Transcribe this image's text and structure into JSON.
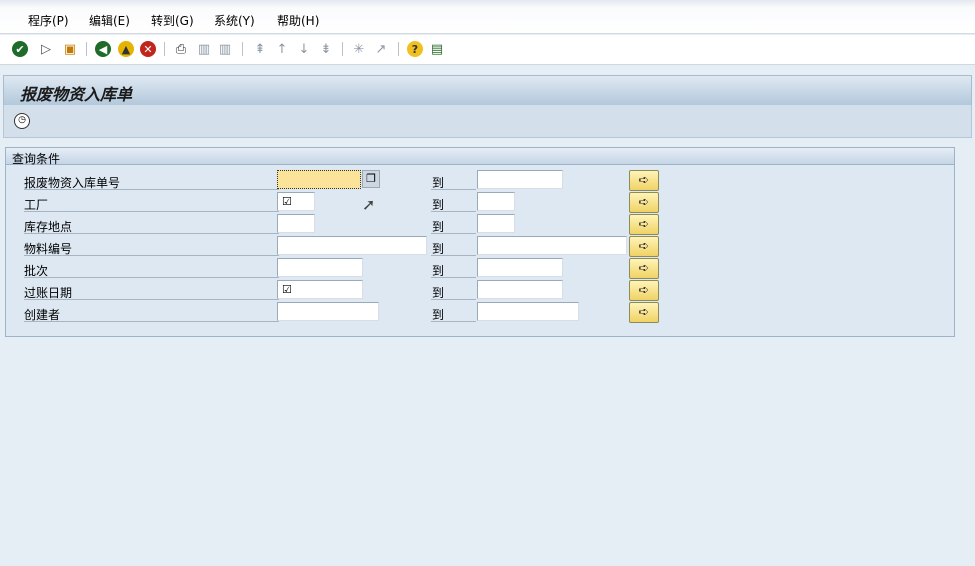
{
  "menu": [
    "程序(P)",
    "编辑(E)",
    "转到(G)",
    "系统(Y)",
    "帮助(H)"
  ],
  "toolbar": {
    "icons": [
      "check-icon",
      "play-icon",
      "save-icon",
      "back-icon",
      "exit-icon",
      "cancel-icon",
      "print-icon",
      "find-icon",
      "find-next-icon",
      "first-page-icon",
      "prev-page-icon",
      "next-page-icon",
      "last-page-icon",
      "create-session-icon",
      "shortcut-icon",
      "help-icon",
      "layout-icon"
    ]
  },
  "title": "报废物资入库单",
  "app_toolbar": {
    "execute_icon": "execute-icon"
  },
  "group": {
    "title": "查询条件",
    "to_label": "到",
    "rows": [
      {
        "label": "报废物资入库单号",
        "from": "",
        "to": ""
      },
      {
        "label": "工厂",
        "from": "☑",
        "to": ""
      },
      {
        "label": "库存地点",
        "from": "",
        "to": ""
      },
      {
        "label": "物料编号",
        "from": "",
        "to": ""
      },
      {
        "label": "批次",
        "from": "",
        "to": ""
      },
      {
        "label": "过账日期",
        "from": "☑",
        "to": ""
      },
      {
        "label": "创建者",
        "from": "",
        "to": ""
      }
    ]
  },
  "colors": {
    "focus_field": "#fbe39a",
    "title_bar": "#b3c8dc",
    "multi_select_button": "#f0d264"
  }
}
